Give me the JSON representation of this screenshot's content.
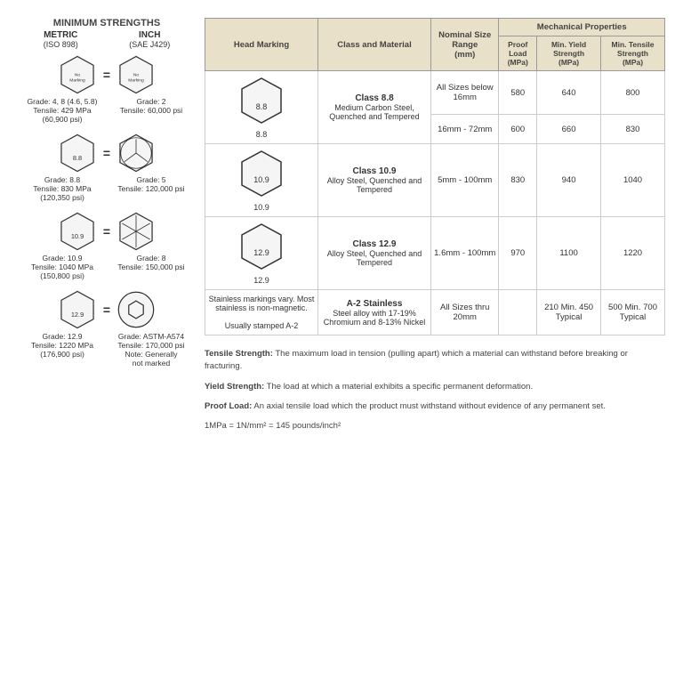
{
  "left": {
    "title": "MINIMUM STRENGTHS",
    "metric_hdr": "METRIC",
    "metric_sub": "(ISO 898)",
    "inch_hdr": "INCH",
    "inch_sub": "(SAE J429)",
    "rows": [
      {
        "m_mark": "No Marking",
        "i_mark": "No Marking",
        "m_lbl": "Grade: 4, 8 (4.6, 5.8)\nTensile: 429 MPa\n(60,900 psi)",
        "i_lbl": "Grade: 2\nTensile: 60,000 psi"
      },
      {
        "m_mark": "8.8",
        "i_mark": "3lines",
        "m_lbl": "Grade: 8.8\nTensile: 830 MPa\n(120,350 psi)",
        "i_lbl": "Grade: 5\nTensile: 120,000 psi"
      },
      {
        "m_mark": "10.9",
        "i_mark": "6lines",
        "m_lbl": "Grade: 10.9\nTensile: 1040 MPa\n(150,800 psi)",
        "i_lbl": "Grade: 8\nTensile: 150,000 psi"
      },
      {
        "m_mark": "12.9",
        "i_mark": "hexsocket",
        "m_lbl": "Grade: 12.9\nTensile: 1220 MPa\n(176,900 psi)",
        "i_lbl": "Grade: ASTM-A574\nTensile: 170,000 psi\nNote: Generally\nnot marked"
      }
    ]
  },
  "table": {
    "h_head": "Head Marking",
    "h_class": "Class and Material",
    "h_nom": "Nominal Size Range",
    "h_nom_sub": "(mm)",
    "h_mech": "Mechanical Properties",
    "h_proof": "Proof Load",
    "h_proof_sub": "(MPa)",
    "h_yield": "Min. Yield Strength",
    "h_yield_sub": "(MPa)",
    "h_tensile": "Min. Tensile Strength",
    "h_tensile_sub": "(MPa)",
    "rows": [
      {
        "mark": "8.8",
        "class_b": "Class 8.8",
        "class_t": "Medium Carbon Steel, Quenched and Tempered",
        "sub": [
          {
            "size": "All Sizes below 16mm",
            "proof": "580",
            "yield": "640",
            "tensile": "800"
          },
          {
            "size": "16mm - 72mm",
            "proof": "600",
            "yield": "660",
            "tensile": "830"
          }
        ]
      },
      {
        "mark": "10.9",
        "class_b": "Class 10.9",
        "class_t": "Alloy Steel, Quenched and Tempered",
        "sub": [
          {
            "size": "5mm - 100mm",
            "proof": "830",
            "yield": "940",
            "tensile": "1040"
          }
        ]
      },
      {
        "mark": "12.9",
        "class_b": "Class 12.9",
        "class_t": "Alloy Steel, Quenched and Tempered",
        "sub": [
          {
            "size": "1.6mm - 100mm",
            "proof": "970",
            "yield": "1100",
            "tensile": "1220"
          }
        ]
      },
      {
        "mark_text": "Stainless markings vary. Most stainless is non-magnetic.\n\nUsually stamped A-2",
        "class_b": "A-2 Stainless",
        "class_t": "Steel alloy with 17-19% Chromium and 8-13% Nickel",
        "sub": [
          {
            "size": "All Sizes thru 20mm",
            "proof": "",
            "yield": "210 Min. 450 Typical",
            "tensile": "500 Min. 700 Typical"
          }
        ]
      }
    ]
  },
  "defs": {
    "tensile_b": "Tensile Strength:",
    "tensile_t": " The maximum load in tension (pulling apart) which a material can withstand before breaking or fracturing.",
    "yield_b": "Yield Strength:",
    "yield_t": " The load at which a material exhibits a specific permanent deformation.",
    "proof_b": "Proof Load:",
    "proof_t": " An axial tensile load which the product must withstand without evidence of any permanent set.",
    "units": "1MPa = 1N/mm² = 145 pounds/inch²"
  }
}
